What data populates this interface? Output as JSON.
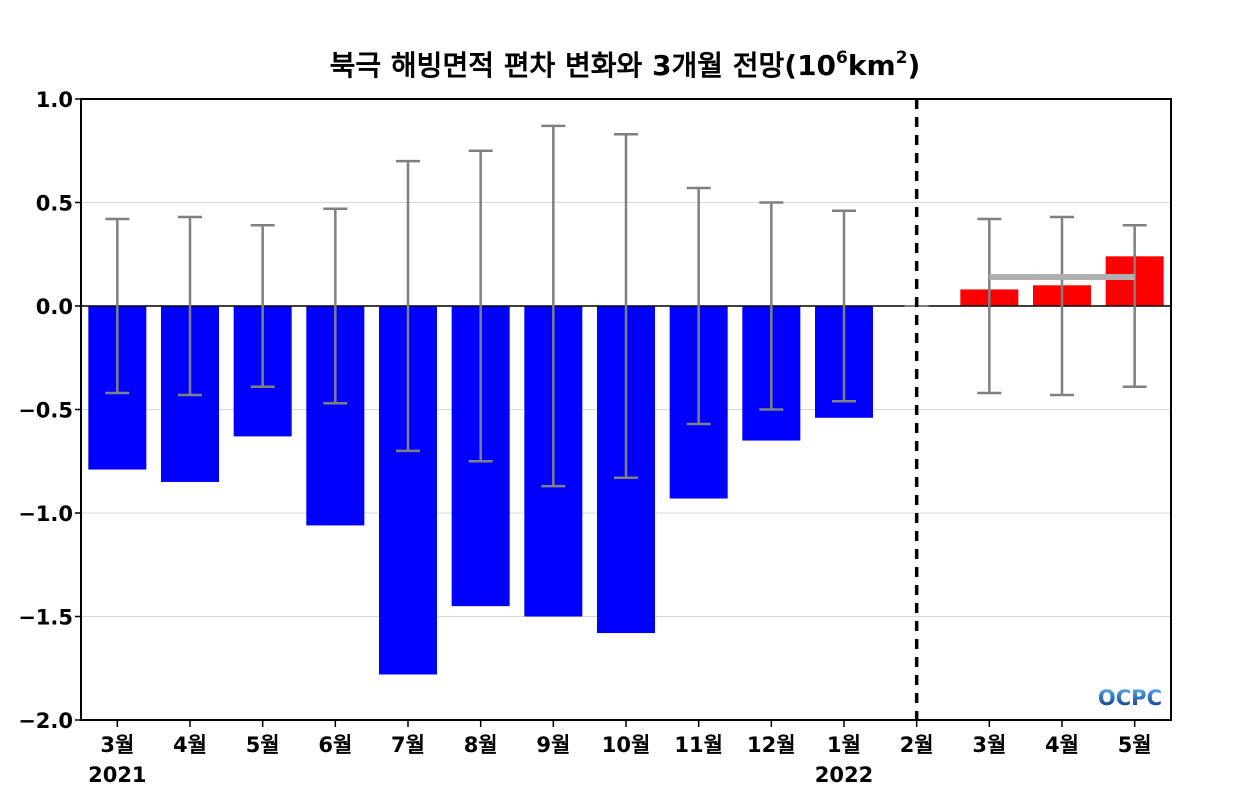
{
  "chart_data": {
    "type": "bar",
    "title_main": "북극 해빙면적 편차 변화와 3개월 전망(10",
    "title_exp1": "6",
    "title_mid": "km",
    "title_exp2": "2",
    "title_end": ")",
    "categories": [
      "3월",
      "4월",
      "5월",
      "6월",
      "7월",
      "8월",
      "9월",
      "10월",
      "11월",
      "12월",
      "1월",
      "2월",
      "3월",
      "4월",
      "5월"
    ],
    "year_labels": [
      {
        "category_index": 0,
        "text": "2021"
      },
      {
        "category_index": 10,
        "text": "2022"
      }
    ],
    "series": [
      {
        "values": [
          -0.79,
          -0.85,
          -0.63,
          -1.06,
          -1.78,
          -1.45,
          -1.5,
          -1.58,
          -0.93,
          -0.65,
          -0.54,
          0.0,
          0.08,
          0.1,
          0.24
        ]
      }
    ],
    "error_bars": [
      0.42,
      0.43,
      0.39,
      0.47,
      0.7,
      0.75,
      0.87,
      0.83,
      0.57,
      0.5,
      0.46,
      null,
      0.42,
      0.43,
      0.39
    ],
    "forecast_mean": {
      "value": 0.14,
      "from_index": 12,
      "to_index": 14
    },
    "forecast_divider_after_index": 11,
    "ylim": [
      -2.0,
      1.0
    ],
    "yticks": [
      1.0,
      0.5,
      0.0,
      -0.5,
      -1.0,
      -1.5,
      -2.0
    ],
    "ytick_labels": [
      "1.0",
      "0.5",
      "0.0",
      "−0.5",
      "−1.0",
      "−1.5",
      "−2.0"
    ],
    "grid": true,
    "colors": {
      "observed": "#0000ff",
      "forecast": "#ff0000",
      "error_bar": "#808080",
      "forecast_mean_line": "#b0b0b0",
      "grid": "#d8d8d8",
      "divider": "#000000"
    }
  },
  "logo": {
    "text": "OCPC"
  }
}
